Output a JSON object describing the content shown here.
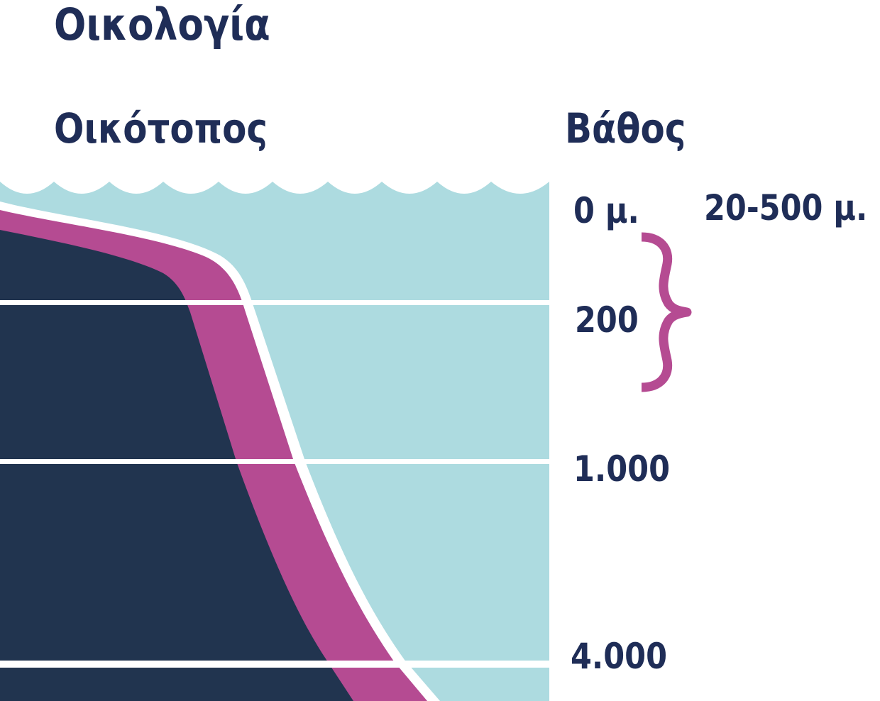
{
  "title": "Οικολογία",
  "habitat_label": "Οικότοπος",
  "depth_label": "Βάθος",
  "depth_ticks": [
    "0 μ.",
    "200",
    "1.000",
    "4.000"
  ],
  "habitat_range": "20-500 μ.",
  "colors": {
    "text": "#1f2d57",
    "water": "#addbe0",
    "seafloor": "#21344f",
    "habitat_band": "#b54b92",
    "lines": "#ffffff"
  }
}
